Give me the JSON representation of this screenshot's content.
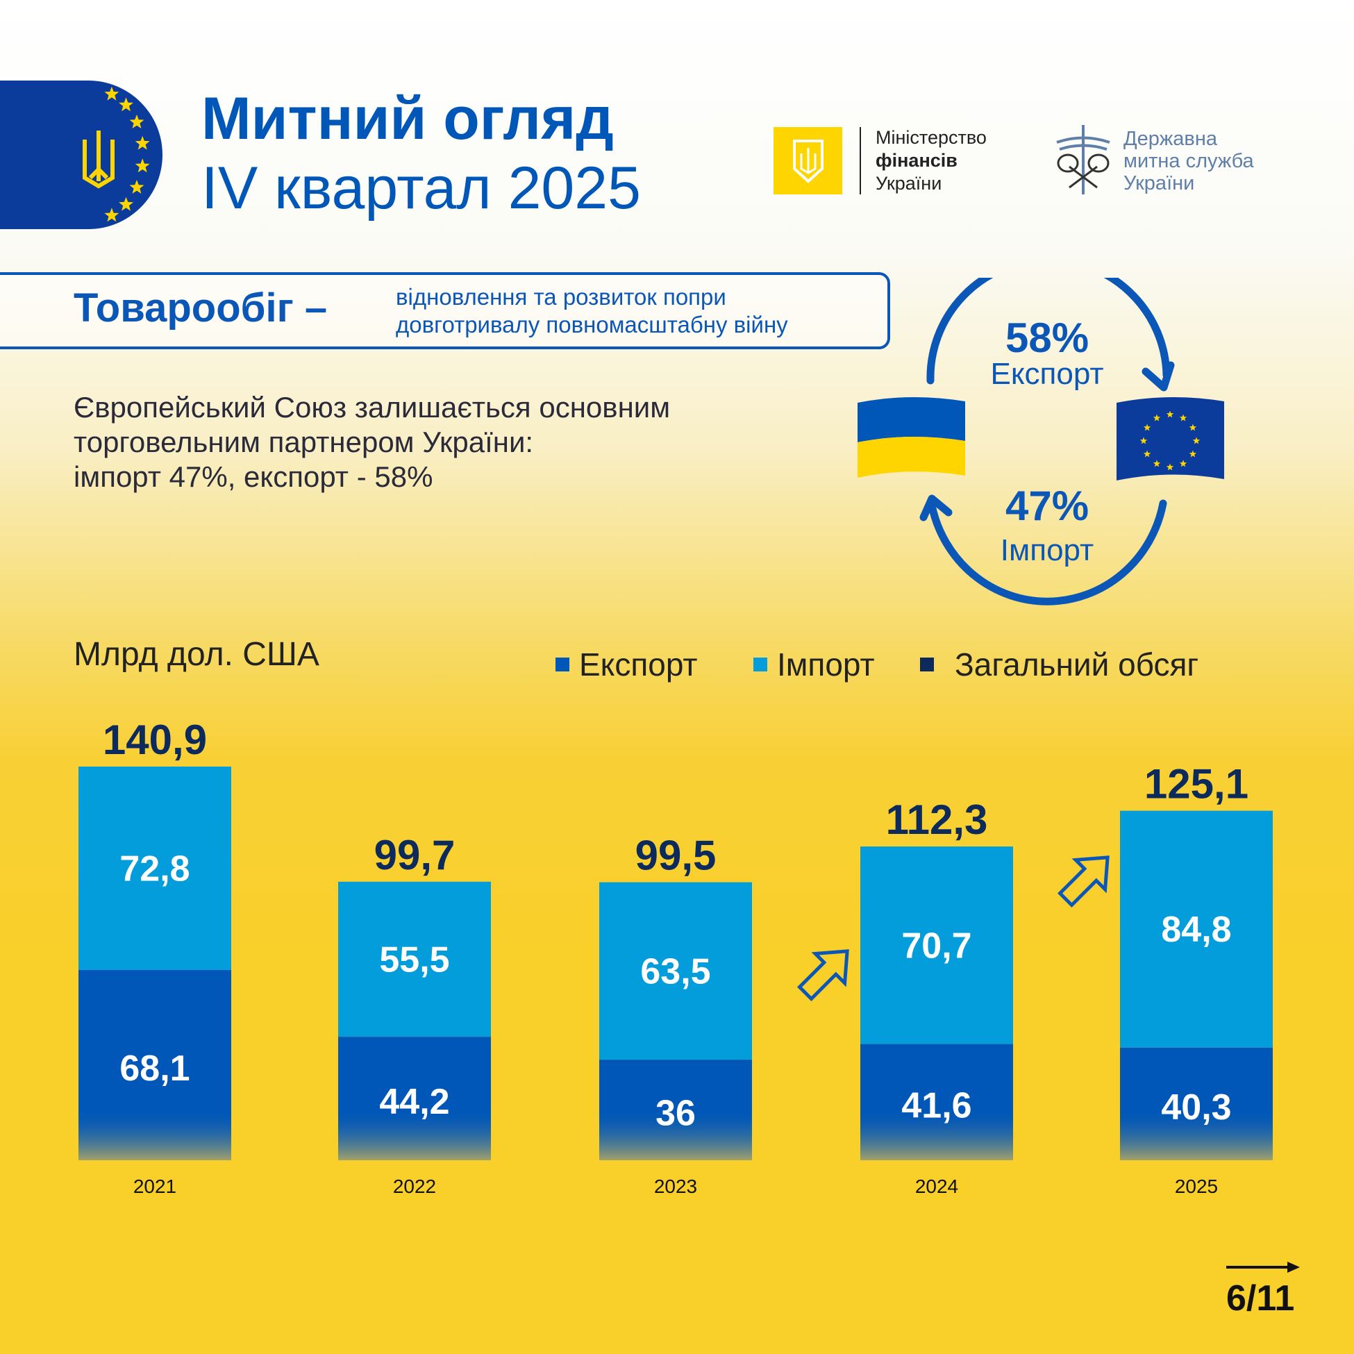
{
  "header": {
    "title_line1": "Митний огляд",
    "title_line2": "IV квартал 2025"
  },
  "logos": {
    "minfin": [
      "Міністерство",
      "фінансів",
      "України"
    ],
    "customs": [
      "Державна",
      "митна служба",
      "України"
    ]
  },
  "section": {
    "title": "Товарообіг –",
    "subtitle_line1": "відновлення та розвиток попри",
    "subtitle_line2": "довготривалу повномасштабну війну"
  },
  "paragraph": [
    "Європейський Союз залишається основним",
    "торговельним партнером України:",
    "імпорт 47%, експорт - 58%"
  ],
  "trade_cycle": {
    "export_pct": "58%",
    "export_label": "Експорт",
    "import_pct": "47%",
    "import_label": "Імпорт"
  },
  "colors": {
    "export": "#0057b8",
    "import": "#039ddb",
    "total": "#0d2a5c",
    "background": "#f9cf2a"
  },
  "chart_data": {
    "type": "bar",
    "stacked": true,
    "unit_label": "Млрд дол. США",
    "categories": [
      "2021",
      "2022",
      "2023",
      "2024",
      "2025"
    ],
    "series": [
      {
        "name": "Експорт",
        "values": [
          68.1,
          44.2,
          36,
          41.6,
          40.3
        ],
        "labels": [
          "68,1",
          "44,2",
          "36",
          "41,6",
          "40,3"
        ]
      },
      {
        "name": "Імпорт",
        "values": [
          72.8,
          55.5,
          63.5,
          70.7,
          84.8
        ],
        "labels": [
          "72,8",
          "55,5",
          "63,5",
          "70,7",
          "84,8"
        ]
      }
    ],
    "totals": {
      "name": "Загальний обсяг",
      "values": [
        140.9,
        99.7,
        99.5,
        112.3,
        125.1
      ],
      "labels": [
        "140,9",
        "99,7",
        "99,5",
        "112,3",
        "125,1"
      ]
    },
    "legend_position": "top-right",
    "grid": false
  },
  "pagination": {
    "current": "6/11"
  }
}
